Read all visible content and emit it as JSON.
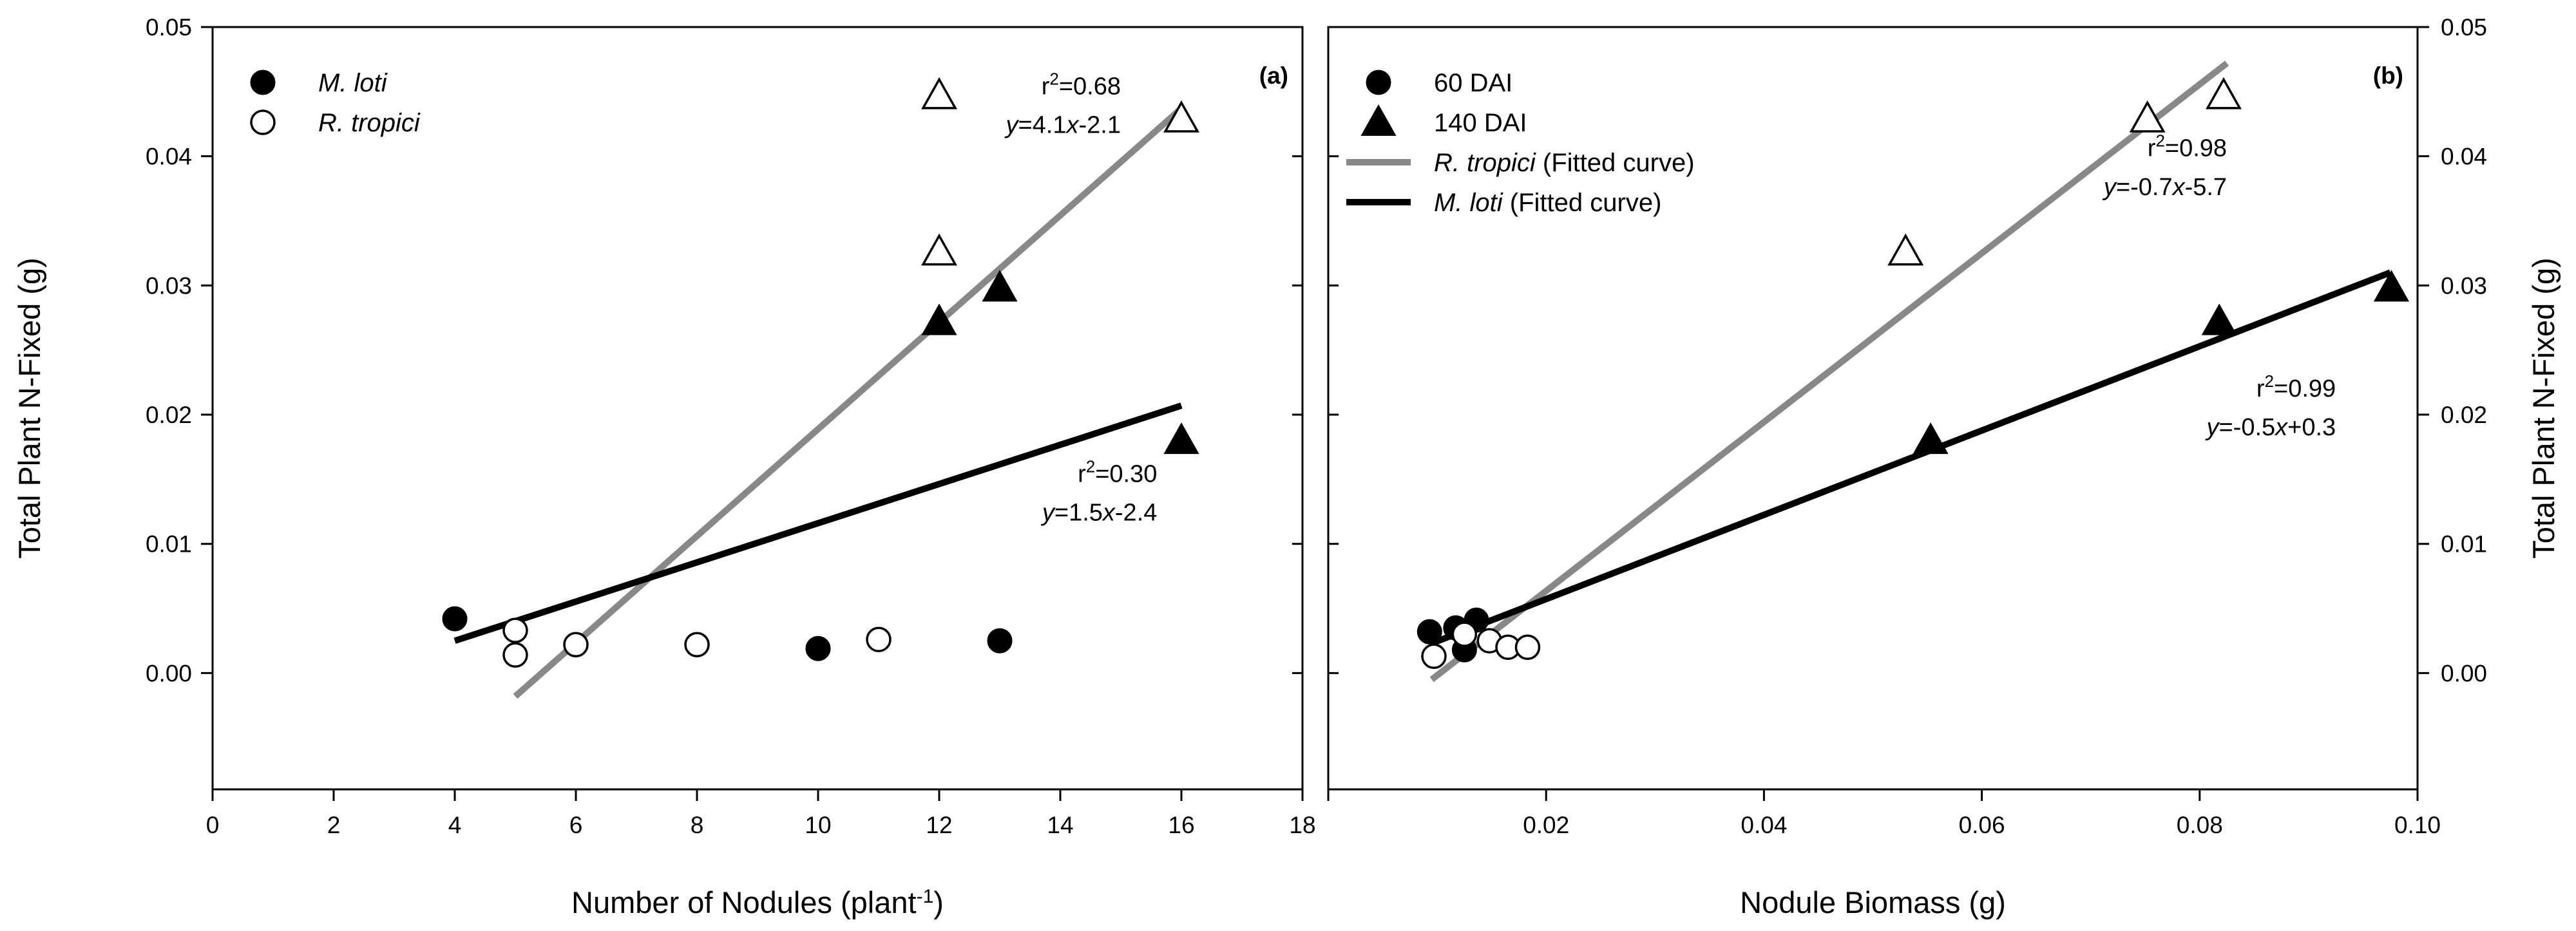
{
  "chart_data": [
    {
      "type": "scatter",
      "panel_label": "(a)",
      "xlabel": "Number of Nodules (plant",
      "xlabel_sup": "-1",
      "xlabel_end": ")",
      "ylabel": "Total Plant N-Fixed (g)",
      "xlim": [
        0,
        18
      ],
      "ylim": [
        -0.009,
        0.05
      ],
      "xticks": [
        0,
        2,
        4,
        6,
        8,
        10,
        12,
        14,
        16,
        18
      ],
      "xtick_labels": [
        "0",
        "2",
        "4",
        "6",
        "8",
        "10",
        "12",
        "14",
        "16",
        "18"
      ],
      "yticks": [
        0.0,
        0.01,
        0.02,
        0.03,
        0.04,
        0.05
      ],
      "ytick_labels": [
        "0.00",
        "0.01",
        "0.02",
        "0.03",
        "0.04",
        "0.05"
      ],
      "yaxis_side": "left",
      "grid": false,
      "legend_position": "top-left",
      "legend": [
        {
          "label": "M. loti",
          "marker": "filled-circle",
          "italic": true
        },
        {
          "label": "R. tropici",
          "marker": "open-circle",
          "italic": true
        }
      ],
      "series": [
        {
          "name": "M. loti",
          "marker": "filled-circle",
          "points": [
            [
              4,
              0.0042
            ],
            [
              10,
              0.0019
            ],
            [
              13,
              0.0025
            ]
          ]
        },
        {
          "name": "R. tropici",
          "marker": "open-circle",
          "points": [
            [
              5,
              0.0033
            ],
            [
              5,
              0.0014
            ],
            [
              6,
              0.0022
            ],
            [
              8,
              0.0022
            ],
            [
              11,
              0.0026
            ]
          ]
        },
        {
          "name": "M. loti",
          "marker": "filled-triangle",
          "points": [
            [
              12,
              0.0272
            ],
            [
              13,
              0.0298
            ],
            [
              16,
              0.018
            ]
          ]
        },
        {
          "name": "R. tropici",
          "marker": "open-triangle",
          "points": [
            [
              12,
              0.0447
            ],
            [
              12,
              0.0326
            ],
            [
              16,
              0.0429
            ]
          ]
        }
      ],
      "lines": [
        {
          "color": "#888888",
          "x": [
            5,
            16
          ],
          "y": [
            -0.0018,
            0.0437
          ]
        },
        {
          "color": "#000000",
          "x": [
            4,
            16
          ],
          "y": [
            0.0025,
            0.0207
          ]
        }
      ],
      "annotations": [
        {
          "r2_prefix": "r",
          "r2_sup": "2",
          "r2_rest": "=0.68",
          "eq_var": "y",
          "eq_mid": "=4.1",
          "eq_var2": "x",
          "eq_end": "-2.1",
          "x": 15.0,
          "y_r2": 0.0448,
          "y_eq": 0.0418
        },
        {
          "r2_prefix": "r",
          "r2_sup": "2",
          "r2_rest": "=0.30",
          "eq_var": "y",
          "eq_mid": "=1.5",
          "eq_var2": "x",
          "eq_end": "-2.4",
          "x": 15.6,
          "y_r2": 0.0148,
          "y_eq": 0.0118
        }
      ]
    },
    {
      "type": "scatter",
      "panel_label": "(b)",
      "xlabel": "Nodule Biomass (g)",
      "xlabel_sup": "",
      "xlabel_end": "",
      "ylabel": "Total Plant N-Fixed (g)",
      "xlim": [
        0.0,
        0.1
      ],
      "ylim": [
        -0.009,
        0.05
      ],
      "xticks": [
        0.0,
        0.02,
        0.04,
        0.06,
        0.08,
        0.1
      ],
      "xtick_labels": [
        "",
        "0.02",
        "0.04",
        "0.06",
        "0.08",
        "0.10"
      ],
      "yticks": [
        0.0,
        0.01,
        0.02,
        0.03,
        0.04,
        0.05
      ],
      "ytick_labels": [
        "0.00",
        "0.01",
        "0.02",
        "0.03",
        "0.04",
        "0.05"
      ],
      "yaxis_side": "right",
      "grid": false,
      "legend_position": "top-left",
      "legend": [
        {
          "label": "60 DAI",
          "marker": "filled-circle",
          "italic": false
        },
        {
          "label": "140 DAI",
          "marker": "filled-triangle",
          "italic": false
        },
        {
          "label": "R. tropici",
          "label_rest": " (Fitted curve)",
          "marker": "line-gray",
          "italic": true
        },
        {
          "label": "M. loti",
          "label_rest": " (Fitted curve)",
          "marker": "line-black",
          "italic": true
        }
      ],
      "series": [
        {
          "name": "60 DAI",
          "marker": "filled-circle",
          "points": [
            [
              0.0093,
              0.0032
            ],
            [
              0.0117,
              0.0035
            ],
            [
              0.0125,
              0.0018
            ],
            [
              0.0136,
              0.0041
            ]
          ]
        },
        {
          "name": "60 DAI",
          "marker": "open-circle",
          "points": [
            [
              0.0097,
              0.0013
            ],
            [
              0.0125,
              0.003
            ],
            [
              0.0148,
              0.0025
            ],
            [
              0.0165,
              0.002
            ],
            [
              0.0183,
              0.002
            ]
          ]
        },
        {
          "name": "140 DAI",
          "marker": "filled-triangle",
          "points": [
            [
              0.0553,
              0.018
            ],
            [
              0.0818,
              0.0272
            ],
            [
              0.0976,
              0.0298
            ]
          ]
        },
        {
          "name": "140 DAI",
          "marker": "open-triangle",
          "points": [
            [
              0.053,
              0.0326
            ],
            [
              0.0752,
              0.0429
            ],
            [
              0.0822,
              0.0447
            ]
          ]
        }
      ],
      "lines": [
        {
          "color": "#888888",
          "x": [
            0.0095,
            0.0825
          ],
          "y": [
            -0.0005,
            0.0472
          ]
        },
        {
          "color": "#000000",
          "x": [
            0.0095,
            0.0975
          ],
          "y": [
            0.0023,
            0.031
          ]
        }
      ],
      "annotations": [
        {
          "r2_prefix": "r",
          "r2_sup": "2",
          "r2_rest": "=0.98",
          "eq_var": "y",
          "eq_mid": "=-0.7",
          "eq_var2": "x",
          "eq_end": "-5.7",
          "x": 0.0825,
          "y_r2": 0.04,
          "y_eq": 0.037
        },
        {
          "r2_prefix": "r",
          "r2_sup": "2",
          "r2_rest": "=0.99",
          "eq_var": "y",
          "eq_mid": "=-0.5",
          "eq_var2": "x",
          "eq_end": "+0.3",
          "x": 0.0925,
          "y_r2": 0.0214,
          "y_eq": 0.0184
        }
      ]
    }
  ]
}
